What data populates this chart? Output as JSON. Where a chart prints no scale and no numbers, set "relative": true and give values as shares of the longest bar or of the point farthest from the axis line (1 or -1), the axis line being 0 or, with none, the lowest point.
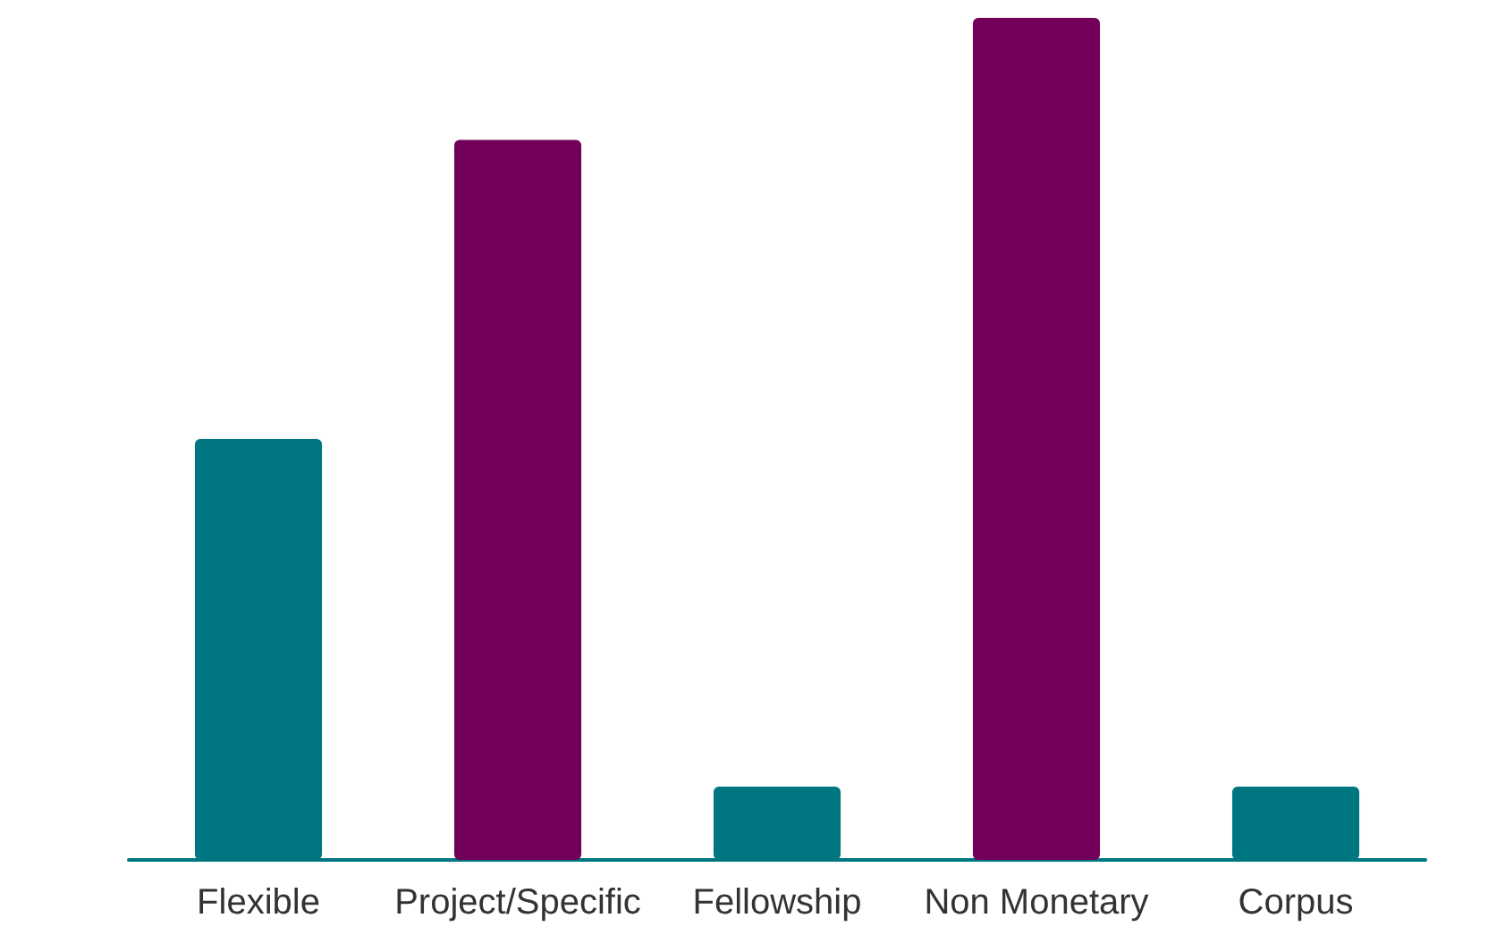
{
  "chart_data": {
    "type": "bar",
    "relative": true,
    "categories": [
      "Flexible",
      "Project/Specific",
      "Fellowship",
      "Non Monetary",
      "Corpus"
    ],
    "values": [
      0.5,
      0.855,
      0.087,
      1,
      0.087
    ],
    "colors": [
      "#007680",
      "#72005a",
      "#007680",
      "#72005a",
      "#007680"
    ]
  }
}
